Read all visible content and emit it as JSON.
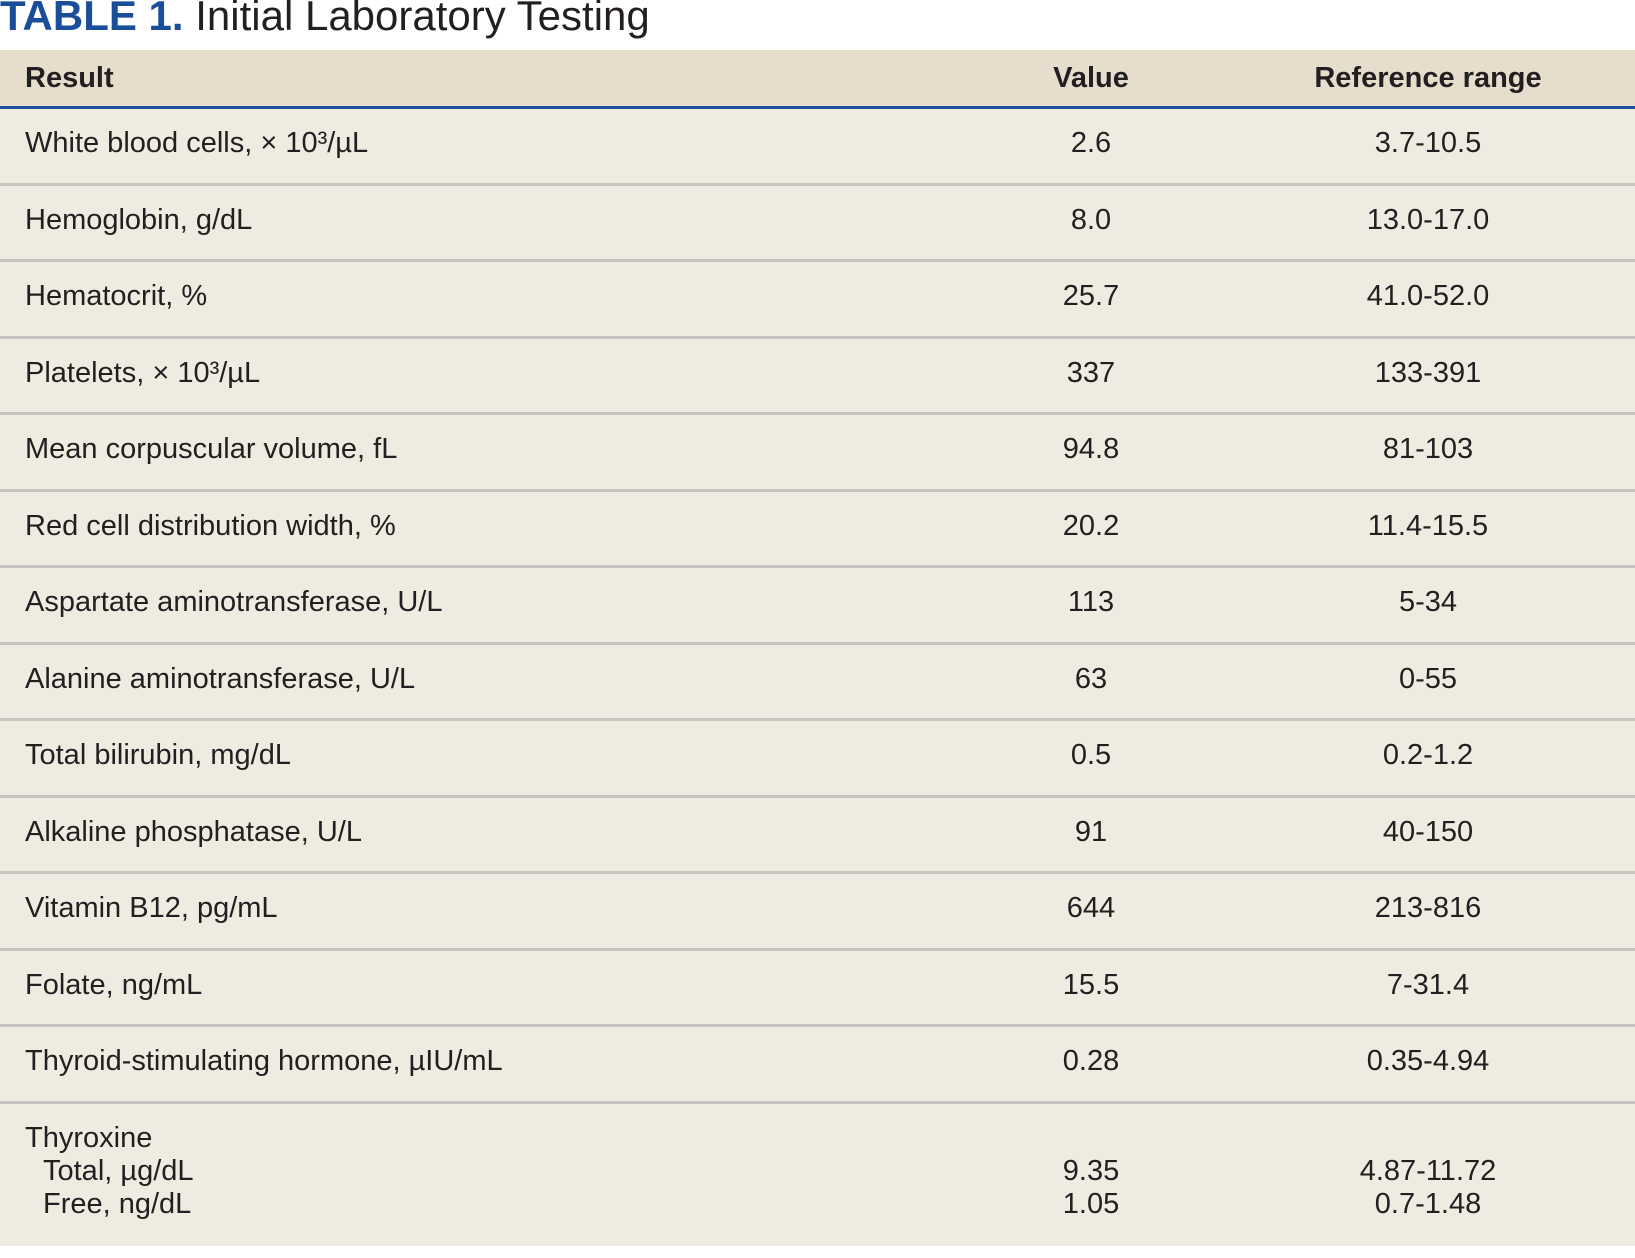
{
  "title": {
    "label": "TABLE 1.",
    "text": "Initial Laboratory Testing"
  },
  "table": {
    "headers": [
      "Result",
      "Value",
      "Reference range"
    ],
    "rows": [
      [
        "White blood cells, × 10³/µL",
        "2.6",
        "3.7-10.5"
      ],
      [
        "Hemoglobin, g/dL",
        "8.0",
        "13.0-17.0"
      ],
      [
        "Hematocrit, %",
        "25.7",
        "41.0-52.0"
      ],
      [
        "Platelets, × 10³/µL",
        "337",
        "133-391"
      ],
      [
        "Mean corpuscular volume, fL",
        "94.8",
        "81-103"
      ],
      [
        "Red cell distribution width, %",
        "20.2",
        "11.4-15.5"
      ],
      [
        "Aspartate aminotransferase, U/L",
        "113",
        "5-34"
      ],
      [
        "Alanine aminotransferase, U/L",
        "63",
        "0-55"
      ],
      [
        "Total bilirubin, mg/dL",
        "0.5",
        "0.2-1.2"
      ],
      [
        "Alkaline phosphatase, U/L",
        "91",
        "40-150"
      ],
      [
        "Vitamin B12, pg/mL",
        "644",
        "213-816"
      ],
      [
        "Folate, ng/mL",
        "15.5",
        "7-31.4"
      ],
      [
        "Thyroid-stimulating hormone, µIU/mL",
        "0.28",
        "0.35-4.94"
      ]
    ],
    "group": {
      "label": "Thyroxine",
      "rows": [
        [
          "Total, µg/dL",
          "9.35",
          "4.87-11.72"
        ],
        [
          "Free, ng/dL",
          "1.05",
          "0.7-1.48"
        ]
      ]
    }
  }
}
